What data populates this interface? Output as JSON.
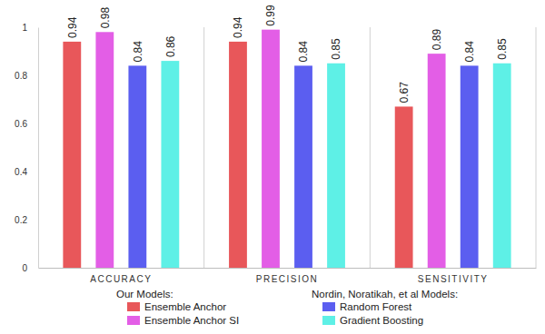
{
  "chart_data": {
    "type": "bar",
    "categories": [
      "ACCURACY",
      "PRECISION",
      "SENSITIVITY"
    ],
    "series": [
      {
        "name": "Ensemble Anchor",
        "color": "#e8575a",
        "values": [
          0.94,
          0.94,
          0.67
        ]
      },
      {
        "name": "Ensemble Anchor SI",
        "color": "#e35ee6",
        "values": [
          0.98,
          0.99,
          0.89
        ]
      },
      {
        "name": "Random Forest",
        "color": "#5b5ef0",
        "values": [
          0.84,
          0.84,
          0.84
        ]
      },
      {
        "name": "Gradient Boosting",
        "color": "#5ef0e6",
        "values": [
          0.86,
          0.85,
          0.85
        ]
      }
    ],
    "legend_titles": [
      "Our Models:",
      "Nordin, Noratikah, et al Models:"
    ],
    "ylim": [
      0,
      1
    ],
    "yticks": [
      0,
      0.2,
      0.4,
      0.6,
      0.8,
      1
    ],
    "grid": false,
    "data_labels": true
  }
}
